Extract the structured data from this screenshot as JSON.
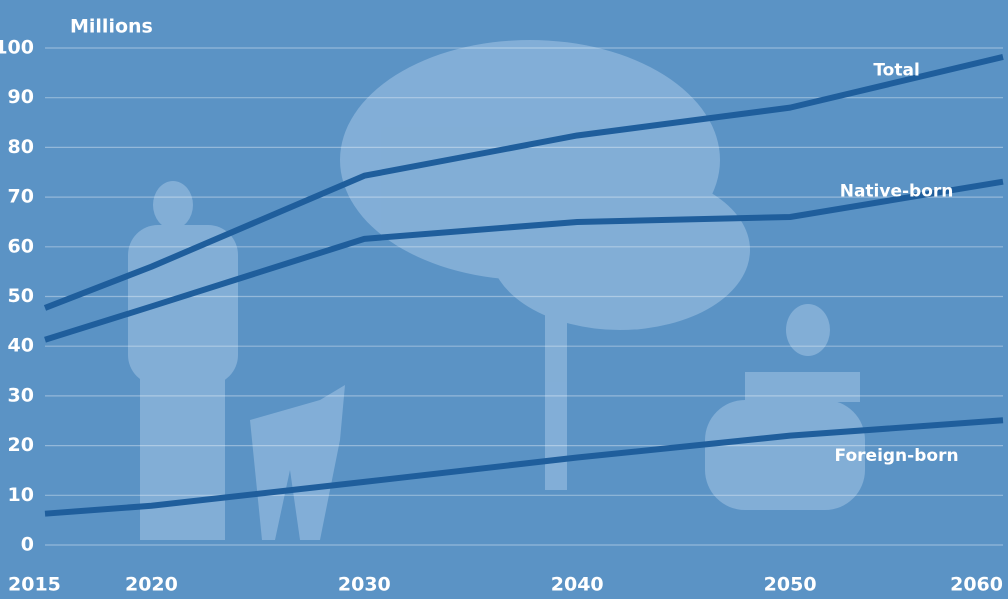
{
  "chart_data": {
    "type": "line",
    "y_axis_label": "Millions",
    "x": [
      2015,
      2020,
      2030,
      2040,
      2050,
      2060
    ],
    "xlim": [
      2015,
      2060
    ],
    "xticks": [
      2015,
      2020,
      2030,
      2040,
      2050,
      2060
    ],
    "ylim": [
      0,
      100
    ],
    "yticks": [
      0,
      10,
      20,
      30,
      40,
      50,
      60,
      70,
      80,
      90,
      100
    ],
    "grid": true,
    "series": [
      {
        "name": "Total",
        "color": "#1f5e9c",
        "values": [
          47.7,
          56,
          74.3,
          82.4,
          88.0,
          98.2
        ]
      },
      {
        "name": "Native-born",
        "color": "#1f5e9c",
        "values": [
          41.3,
          48,
          61.6,
          65.0,
          66.0,
          73.1
        ]
      },
      {
        "name": "Foreign-born",
        "color": "#1f5e9c",
        "values": [
          6.3,
          7.9,
          12.7,
          17.6,
          22.0,
          25.1
        ]
      }
    ]
  }
}
